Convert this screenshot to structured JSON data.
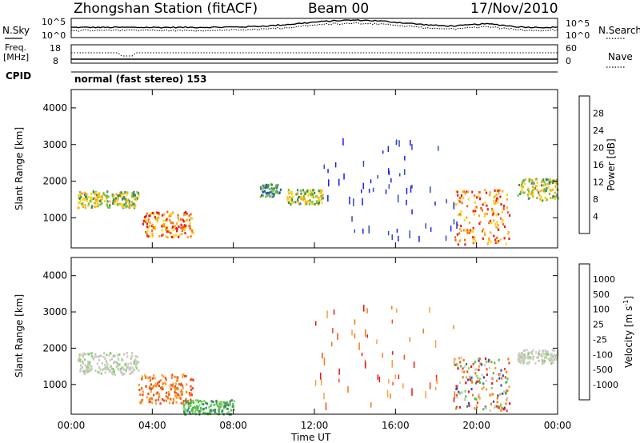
{
  "header": {
    "station": "Zhongshan Station (fitACF)",
    "beam": "Beam 00",
    "date": "17/Nov/2010"
  },
  "top_panels": {
    "nsky_label": "N.Sky",
    "nsky_ticks": [
      "10^5",
      "10^0"
    ],
    "nsearch_label": "N.Search",
    "nsearch_ticks": [
      "10^5",
      "10^0"
    ],
    "freq_label_1": "Freq.",
    "freq_label_2": "[MHz]",
    "freq_ticks": [
      "18",
      "8"
    ],
    "nave_label": "Nave",
    "nave_ticks": [
      "60",
      "0"
    ],
    "cpid_label": "CPID",
    "cpid_text": "normal (fast stereo) 153"
  },
  "chart_data": [
    {
      "type": "heatmap",
      "title": "",
      "ylabel": "Slant Range [km]",
      "xlabel": "Time UT",
      "xlim": [
        0,
        24
      ],
      "ylim": [
        180,
        4500
      ],
      "y_ticks": [
        1000,
        2000,
        3000,
        4000
      ],
      "x_ticks": [
        "00:00",
        "04:00",
        "08:00",
        "12:00",
        "16:00",
        "20:00",
        "00:00"
      ],
      "colorbar": {
        "label": "Power [dB]",
        "ticks": [
          "28",
          "24",
          "20",
          "16",
          "12",
          "8",
          "4"
        ],
        "colors": [
          "#e8191b",
          "#f26a1b",
          "#f7a823",
          "#fcd60c",
          "#78c33e",
          "#3a8a5e",
          "#2e50ae",
          "#1b1bf5"
        ]
      },
      "features": [
        {
          "t0": 0.3,
          "t1": 3.3,
          "r0": 1300,
          "r1": 1750,
          "level": "medium-high"
        },
        {
          "t0": 3.5,
          "t1": 6.0,
          "r0": 500,
          "r1": 1200,
          "level": "high"
        },
        {
          "t0": 9.3,
          "t1": 10.3,
          "r0": 1600,
          "r1": 1950,
          "level": "medium"
        },
        {
          "t0": 10.6,
          "t1": 12.4,
          "r0": 1400,
          "r1": 1800,
          "level": "medium-high"
        },
        {
          "t0": 18.9,
          "t1": 21.6,
          "r0": 300,
          "r1": 1800,
          "level": "high"
        },
        {
          "t0": 22.0,
          "t1": 24.0,
          "r0": 1500,
          "r1": 2100,
          "level": "medium-high"
        }
      ]
    },
    {
      "type": "heatmap",
      "title": "",
      "ylabel": "Slant Range [km]",
      "xlabel": "Time UT",
      "xlim": [
        0,
        24
      ],
      "ylim": [
        180,
        4500
      ],
      "y_ticks": [
        1000,
        2000,
        3000,
        4000
      ],
      "x_ticks": [
        "00:00",
        "04:00",
        "08:00",
        "12:00",
        "16:00",
        "20:00",
        "00:00"
      ],
      "colorbar": {
        "label": "Velocity [m s",
        "label_sup": "-1",
        "ticks": [
          "1000",
          "500",
          "100",
          "25",
          "-25",
          "-100",
          "-500",
          "-1000"
        ],
        "colors": [
          "#2850b8",
          "#3a8a5e",
          "#4fbf4f",
          "#8ad06b",
          "#cacac0",
          "#f6a23a",
          "#f27a12",
          "#ee4b1d",
          "#e81818"
        ]
      },
      "features": [
        {
          "t0": 0.3,
          "t1": 3.3,
          "r0": 1300,
          "r1": 1900,
          "level": "ground-scatter"
        },
        {
          "t0": 3.3,
          "t1": 6.0,
          "r0": 500,
          "r1": 1300,
          "level": "away"
        },
        {
          "t0": 5.5,
          "t1": 8.0,
          "r0": 200,
          "r1": 600,
          "level": "toward"
        },
        {
          "t0": 18.9,
          "t1": 21.6,
          "r0": 300,
          "r1": 1800,
          "level": "mixed"
        },
        {
          "t0": 22.0,
          "t1": 24.0,
          "r0": 1600,
          "r1": 2000,
          "level": "ground-scatter"
        }
      ]
    }
  ],
  "x_axis_title": "Time UT"
}
